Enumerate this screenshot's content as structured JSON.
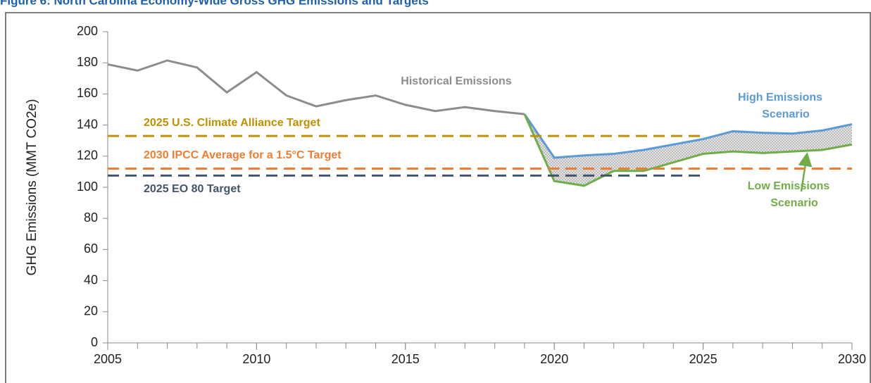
{
  "chart_data": {
    "type": "line",
    "title": "Figure 6: North Carolina Economy-Wide Gross GHG Emissions and Targets",
    "y_label": "GHG Emissions (MMT CO2e)",
    "xlim": [
      2005,
      2030
    ],
    "xticks": [
      2005,
      2010,
      2015,
      2020,
      2025,
      2030
    ],
    "ylim": [
      0,
      200
    ],
    "yticks": [
      0,
      20,
      40,
      60,
      80,
      100,
      120,
      140,
      160,
      180,
      200
    ],
    "series": [
      {
        "name": "Historical Emissions",
        "color": "#8c8c8c",
        "x": [
          2005,
          2006,
          2007,
          2008,
          2009,
          2010,
          2011,
          2012,
          2013,
          2014,
          2015,
          2016,
          2017,
          2018,
          2019
        ],
        "values": [
          179,
          175,
          181.5,
          177,
          161,
          174,
          159,
          152,
          156,
          159,
          153,
          149,
          151.5,
          149,
          147
        ]
      },
      {
        "name": "High Emissions Scenario",
        "color": "#5b9bd5",
        "x": [
          2019,
          2020,
          2021,
          2022,
          2023,
          2024,
          2025,
          2026,
          2027,
          2028,
          2029,
          2030
        ],
        "values": [
          147,
          119,
          120.5,
          121.5,
          124,
          127.5,
          131,
          136,
          135,
          134.5,
          136.5,
          140.5
        ]
      },
      {
        "name": "Low Emissions Scenario",
        "color": "#70ad47",
        "x": [
          2019,
          2020,
          2021,
          2022,
          2023,
          2024,
          2025,
          2026,
          2027,
          2028,
          2029,
          2030
        ],
        "values": [
          147,
          104,
          101,
          110.5,
          110.5,
          116,
          121.5,
          123,
          122,
          123,
          124,
          127.5
        ]
      },
      {
        "name": "2025 U.S. Climate Alliance Target",
        "color": "#bf9000",
        "dashed": true,
        "x": [
          2005,
          2025
        ],
        "values": [
          133,
          133
        ]
      },
      {
        "name": "2030 IPCC Average for a 1.5°C Target",
        "color": "#ed7d31",
        "dashed": true,
        "x": [
          2005,
          2030
        ],
        "values": [
          112,
          112
        ]
      },
      {
        "name": "2025 EO 80 Target",
        "color": "#44546a",
        "dashed": true,
        "x": [
          2005,
          2025
        ],
        "values": [
          107.5,
          107.5
        ]
      }
    ],
    "band_color": "#d0d0d0"
  }
}
